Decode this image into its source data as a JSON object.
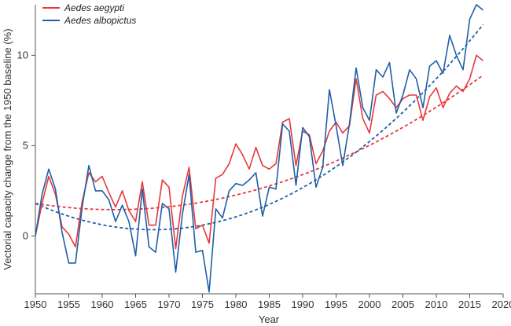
{
  "chart_data": {
    "type": "line",
    "xlabel": "Year",
    "ylabel": "Vectorial capacity change from the 1950 baseline (%)",
    "xlim": [
      1950,
      2020
    ],
    "ylim": [
      -3.2,
      12.8
    ],
    "x_ticks": [
      1950,
      1955,
      1960,
      1965,
      1970,
      1975,
      1980,
      1985,
      1990,
      1995,
      2000,
      2005,
      2010,
      2015,
      2020
    ],
    "y_ticks": [
      0,
      5,
      10
    ],
    "x": [
      1950,
      1951,
      1952,
      1953,
      1954,
      1955,
      1956,
      1957,
      1958,
      1959,
      1960,
      1961,
      1962,
      1963,
      1964,
      1965,
      1966,
      1967,
      1968,
      1969,
      1970,
      1971,
      1972,
      1973,
      1974,
      1975,
      1976,
      1977,
      1978,
      1979,
      1980,
      1981,
      1982,
      1983,
      1984,
      1985,
      1986,
      1987,
      1988,
      1989,
      1990,
      1991,
      1992,
      1993,
      1994,
      1995,
      1996,
      1997,
      1998,
      1999,
      2000,
      2001,
      2002,
      2003,
      2004,
      2005,
      2006,
      2007,
      2008,
      2009,
      2010,
      2011,
      2012,
      2013,
      2014,
      2015,
      2016,
      2017
    ],
    "series": [
      {
        "name": "Aedes aegypti",
        "color": "#e8373a",
        "values": [
          0.0,
          1.8,
          3.3,
          2.3,
          0.5,
          0.1,
          -0.6,
          1.9,
          3.5,
          3.0,
          3.3,
          2.4,
          1.6,
          2.5,
          1.4,
          0.8,
          3.0,
          0.6,
          0.6,
          3.1,
          2.7,
          -0.7,
          2.2,
          3.8,
          0.4,
          0.6,
          -0.4,
          3.2,
          3.4,
          4.0,
          5.1,
          4.5,
          3.7,
          4.9,
          3.9,
          3.7,
          4.0,
          6.3,
          6.5,
          3.9,
          5.8,
          5.6,
          4.0,
          4.7,
          5.8,
          6.3,
          5.7,
          6.1,
          8.7,
          6.5,
          5.7,
          7.8,
          8.0,
          7.6,
          7.1,
          7.6,
          7.8,
          7.8,
          6.4,
          7.7,
          8.2,
          7.1,
          7.9,
          8.3,
          8.0,
          8.7,
          10.0,
          9.7
        ]
      },
      {
        "name": "Aedes albopictus",
        "color": "#1f5fa8",
        "values": [
          0.0,
          2.3,
          3.7,
          2.6,
          0.2,
          -1.5,
          -1.5,
          1.6,
          3.9,
          2.5,
          2.5,
          2.0,
          0.8,
          1.7,
          0.8,
          -1.1,
          2.6,
          -0.6,
          -0.9,
          1.8,
          1.5,
          -2.0,
          1.2,
          3.4,
          -0.9,
          -0.8,
          -3.1,
          1.5,
          1.0,
          2.5,
          2.9,
          2.8,
          3.1,
          3.5,
          1.1,
          2.7,
          2.6,
          6.2,
          5.8,
          2.8,
          6.0,
          5.5,
          2.7,
          3.8,
          8.1,
          6.1,
          3.9,
          6.2,
          9.3,
          7.1,
          6.4,
          9.2,
          8.8,
          9.6,
          6.8,
          7.8,
          9.2,
          8.7,
          7.1,
          9.4,
          9.7,
          9.0,
          11.1,
          10.0,
          9.2,
          12.0,
          12.8,
          12.5
        ]
      }
    ],
    "trendlines": [
      {
        "name": "Aedes aegypti",
        "color": "#e8373a",
        "style": "dashed",
        "x": [
          1950,
          1966,
          2017
        ],
        "y": [
          1.8,
          1.5,
          8.9
        ]
      },
      {
        "name": "Aedes albopictus",
        "color": "#1f5fa8",
        "style": "dashed",
        "x": [
          1950,
          1971,
          2017
        ],
        "y": [
          1.8,
          0.4,
          11.7
        ]
      }
    ],
    "legend": {
      "position": "top-left"
    }
  }
}
